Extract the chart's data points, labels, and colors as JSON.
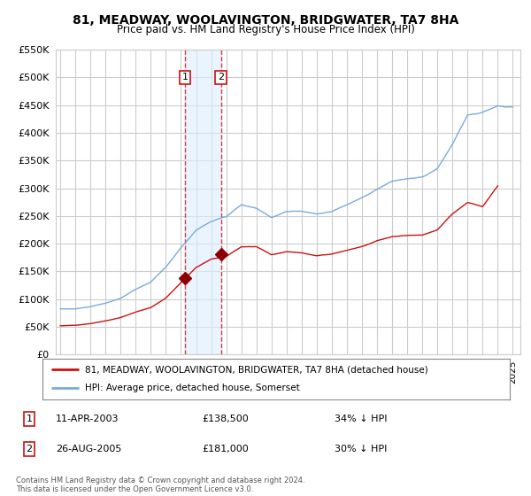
{
  "title_line1": "81, MEADWAY, WOOLAVINGTON, BRIDGWATER, TA7 8HA",
  "title_line2": "Price paid vs. HM Land Registry's House Price Index (HPI)",
  "legend_line1": "81, MEADWAY, WOOLAVINGTON, BRIDGWATER, TA7 8HA (detached house)",
  "legend_line2": "HPI: Average price, detached house, Somerset",
  "footer": "Contains HM Land Registry data © Crown copyright and database right 2024.\nThis data is licensed under the Open Government Licence v3.0.",
  "sale1_label": "1",
  "sale1_date": "11-APR-2003",
  "sale1_price": 138500,
  "sale1_hpi": "34% ↓ HPI",
  "sale2_label": "2",
  "sale2_date": "26-AUG-2005",
  "sale2_price": 181000,
  "sale2_hpi": "30% ↓ HPI",
  "hpi_color": "#7aabdc",
  "price_color": "#cc1111",
  "sale_marker_color": "#8b0000",
  "highlight_color": "#ddeeff",
  "highlight_alpha": 0.6,
  "sale1_x": 2003.27,
  "sale2_x": 2005.65,
  "ylim_max": 550000,
  "background_color": "#ffffff",
  "grid_color": "#cccccc",
  "outer_bg": "#ffffff"
}
